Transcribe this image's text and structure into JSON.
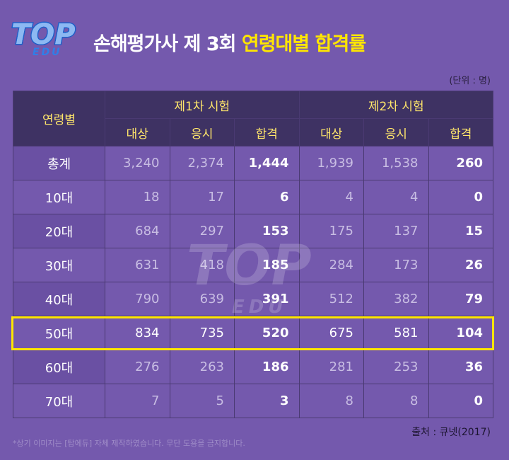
{
  "logo": {
    "text": "TOP",
    "sub": "EDU"
  },
  "title": {
    "main": "손해평가사 제 3회 ",
    "highlight": "연령대별 합격률"
  },
  "unit": "(단위 : 명)",
  "table": {
    "corner": "연령별",
    "groups": [
      "제1차 시험",
      "제2차 시험"
    ],
    "subheaders": [
      "대상",
      "응시",
      "합격",
      "대상",
      "응시",
      "합격"
    ],
    "rows": [
      {
        "label": "총계",
        "values": [
          "3,240",
          "2,374",
          "1,444",
          "1,939",
          "1,538",
          "260"
        ]
      },
      {
        "label": "10대",
        "values": [
          "18",
          "17",
          "6",
          "4",
          "4",
          "0"
        ]
      },
      {
        "label": "20대",
        "values": [
          "684",
          "297",
          "153",
          "175",
          "137",
          "15"
        ]
      },
      {
        "label": "30대",
        "values": [
          "631",
          "418",
          "185",
          "284",
          "173",
          "26"
        ]
      },
      {
        "label": "40대",
        "values": [
          "790",
          "639",
          "391",
          "512",
          "382",
          "79"
        ]
      },
      {
        "label": "50대",
        "values": [
          "834",
          "735",
          "520",
          "675",
          "581",
          "104"
        ]
      },
      {
        "label": "60대",
        "values": [
          "276",
          "263",
          "186",
          "281",
          "253",
          "36"
        ]
      },
      {
        "label": "70대",
        "values": [
          "7",
          "5",
          "3",
          "8",
          "8",
          "0"
        ]
      }
    ],
    "highlighted_row": "50대"
  },
  "source": "출처 : 큐넷(2017)",
  "footnote": "*상기 이미지는 [탑에듀] 자체 제작하였습니다. 무단 도용을 금지합니다.",
  "colors": {
    "background": "#7459ad",
    "header": "#3e3263",
    "highlight": "#ffe600",
    "title_highlight": "#ffe600"
  }
}
